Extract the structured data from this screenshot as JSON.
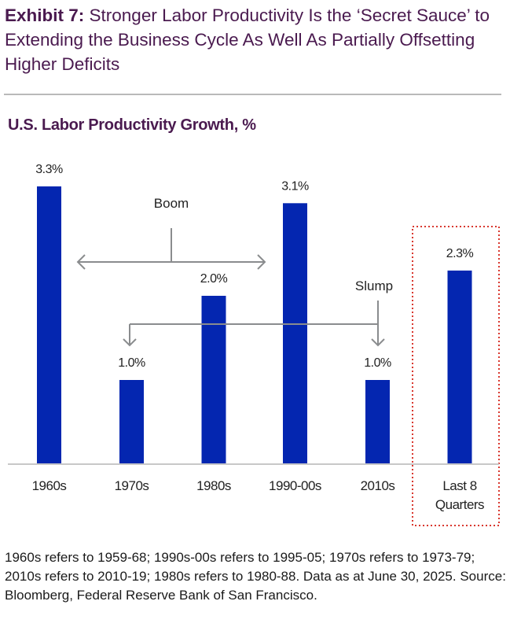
{
  "header": {
    "exhibit_label": "Exhibit 7:",
    "title": "Stronger Labor Productivity Is the ‘Secret Sauce’ to Extending the Business Cycle As Well As Partially Offsetting Higher Deficits"
  },
  "chart_data": {
    "type": "bar",
    "title": "U.S. Labor Productivity Growth, %",
    "categories": [
      "1960s",
      "1970s",
      "1980s",
      "1990-00s",
      "2010s",
      "Last 8 Quarters"
    ],
    "category_lines": [
      [
        "1960s"
      ],
      [
        "1970s"
      ],
      [
        "1980s"
      ],
      [
        "1990-00s"
      ],
      [
        "2010s"
      ],
      [
        "Last 8",
        "Quarters"
      ]
    ],
    "values": [
      3.3,
      1.0,
      2.0,
      3.1,
      1.0,
      2.3
    ],
    "data_labels": [
      "3.3%",
      "1.0%",
      "2.0%",
      "3.1%",
      "1.0%",
      "2.3%"
    ],
    "ylim": [
      0,
      3.5
    ],
    "xlabel": "",
    "ylabel": "",
    "grid": false,
    "bar_color": "#0426b0",
    "highlight_category": "Last 8 Quarters",
    "highlight_color": "#d9382f",
    "annotations": [
      {
        "text": "Boom",
        "points_to": [
          "1960s",
          "1990-00s"
        ]
      },
      {
        "text": "Slump",
        "points_to": [
          "1970s",
          "2010s"
        ]
      }
    ]
  },
  "footnote": "1960s refers to 1959-68; 1990s-00s refers to 1995-05; 1970s refers to 1973-79; 2010s refers to 2010-19; 1980s refers to 1980-88. Data as at June 30, 2025. Source: Bloomberg, Federal Reserve Bank of San Francisco."
}
